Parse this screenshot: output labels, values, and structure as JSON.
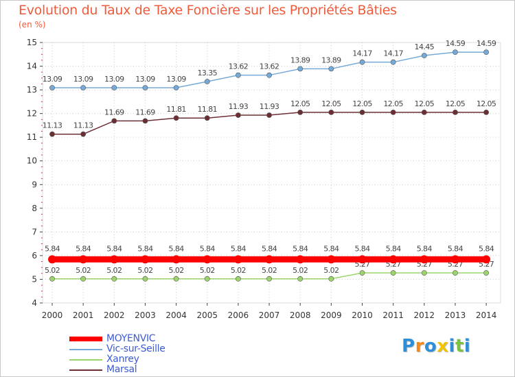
{
  "title": "Evolution du Taux de Taxe Foncière sur les Propriétés Bâties",
  "unit_label": "(en %)",
  "logo": {
    "text": "Proxiti",
    "letters": [
      {
        "ch": "P",
        "color": "#2e8fd8"
      },
      {
        "ch": "r",
        "color": "#f08a1c"
      },
      {
        "ch": "o",
        "color": "#2e8fd8"
      },
      {
        "ch": "x",
        "color": "#f2c400"
      },
      {
        "ch": "i",
        "color": "#2e8fd8"
      },
      {
        "ch": "t",
        "color": "#7cc242"
      },
      {
        "ch": "i",
        "color": "#2e8fd8"
      }
    ]
  },
  "chart_data": {
    "type": "line",
    "title": "Evolution du Taux de Taxe Foncière sur les Propriétés Bâties",
    "ylabel": "(en %)",
    "xlabel": "",
    "ylim": [
      4,
      15
    ],
    "y_ticks": [
      "4",
      "5",
      "6",
      "7",
      "8",
      "9",
      "10",
      "11",
      "12",
      "13",
      "14",
      "15"
    ],
    "categories": [
      "2000",
      "2001",
      "2002",
      "2003",
      "2004",
      "2005",
      "2006",
      "2007",
      "2008",
      "2009",
      "2010",
      "2011",
      "2012",
      "2013",
      "2014"
    ],
    "series": [
      {
        "name": "MOYENVIC",
        "color": "#ff0000",
        "values": [
          5.84,
          5.84,
          5.84,
          5.84,
          5.84,
          5.84,
          5.84,
          5.84,
          5.84,
          5.84,
          5.84,
          5.84,
          5.84,
          5.84,
          5.84
        ],
        "labels": [
          "5.84",
          "5.84",
          "5.84",
          "5.84",
          "5.84",
          "5.84",
          "5.84",
          "5.84",
          "5.84",
          "5.84",
          "5.84",
          "5.84",
          "5.84",
          "5.84",
          "5.84"
        ]
      },
      {
        "name": "Vic-sur-Seille",
        "color": "#74a9d8",
        "values": [
          13.09,
          13.09,
          13.09,
          13.09,
          13.09,
          13.35,
          13.62,
          13.62,
          13.89,
          13.89,
          14.17,
          14.17,
          14.45,
          14.59,
          14.59
        ],
        "labels": [
          "13.09",
          "13.09",
          "13.09",
          "13.09",
          "13.09",
          "13.35",
          "13.62",
          "13.62",
          "13.89",
          "13.89",
          "14.17",
          "14.17",
          "14.45",
          "14.59",
          "14.59"
        ]
      },
      {
        "name": "Xanrey",
        "color": "#9bd46a",
        "values": [
          5.02,
          5.02,
          5.02,
          5.02,
          5.02,
          5.02,
          5.02,
          5.02,
          5.02,
          5.02,
          5.27,
          5.27,
          5.27,
          5.27,
          5.27
        ],
        "labels": [
          "5.02",
          "5.02",
          "5.02",
          "5.02",
          "5.02",
          "5.02",
          "5.02",
          "5.02",
          "5.02",
          "5.02",
          "5.27",
          "5.27",
          "5.27",
          "5.27",
          "5.27"
        ]
      },
      {
        "name": "Marsal",
        "color": "#6b2e33",
        "values": [
          11.13,
          11.13,
          11.69,
          11.69,
          11.81,
          11.81,
          11.93,
          11.93,
          12.05,
          12.05,
          12.05,
          12.05,
          12.05,
          12.05,
          12.05
        ],
        "labels": [
          "11.13",
          "11.13",
          "11.69",
          "11.69",
          "11.81",
          "11.81",
          "11.93",
          "11.93",
          "12.05",
          "12.05",
          "12.05",
          "12.05",
          "12.05",
          "12.05",
          "12.05"
        ]
      }
    ],
    "grid": true,
    "legend_position": "bottom-left"
  }
}
